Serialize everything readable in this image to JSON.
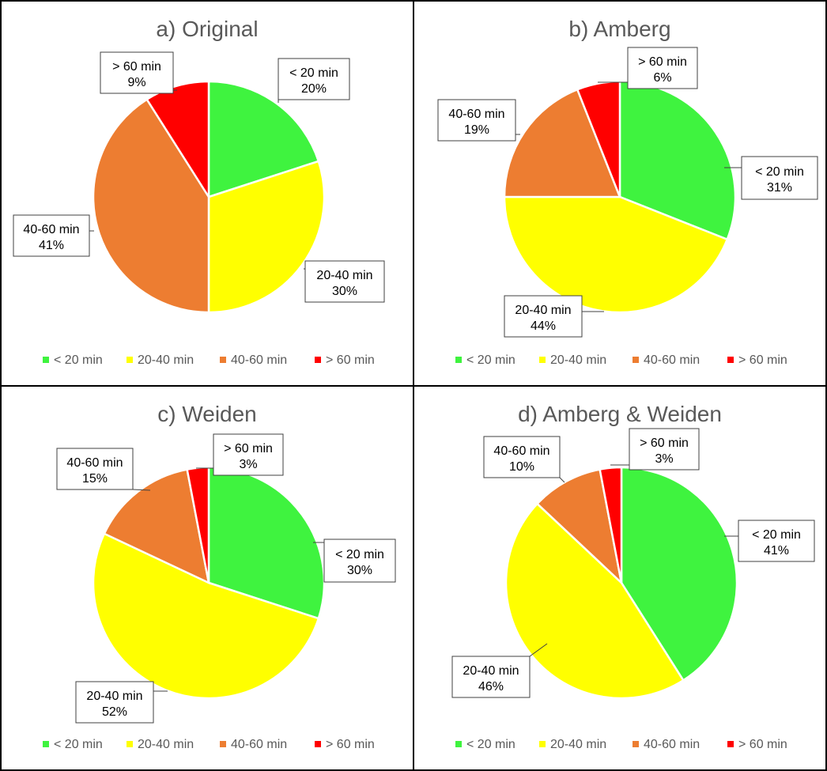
{
  "colors": {
    "lt20": "#3FF33F",
    "20to40": "#FFFF00",
    "40to60": "#ED7D31",
    "gt60": "#FF0000"
  },
  "chart_data": [
    {
      "type": "pie",
      "title": "a) Original",
      "categories": [
        "< 20 min",
        "20-40 min",
        "40-60 min",
        "> 60 min"
      ],
      "values": [
        20,
        30,
        41,
        9
      ],
      "labels": [
        "20%",
        "30%",
        "41%",
        "9%"
      ],
      "legend": [
        "< 20 min",
        "20-40 min",
        "40-60 min",
        "> 60 min"
      ]
    },
    {
      "type": "pie",
      "title": "b) Amberg",
      "categories": [
        "< 20 min",
        "20-40 min",
        "40-60 min",
        "> 60 min"
      ],
      "values": [
        31,
        44,
        19,
        6
      ],
      "labels": [
        "31%",
        "44%",
        "19%",
        "6%"
      ],
      "legend": [
        "< 20 min",
        "20-40 min",
        "40-60 min",
        "> 60 min"
      ]
    },
    {
      "type": "pie",
      "title": "c) Weiden",
      "categories": [
        "< 20 min",
        "20-40 min",
        "40-60 min",
        "> 60 min"
      ],
      "values": [
        30,
        52,
        15,
        3
      ],
      "labels": [
        "30%",
        "52%",
        "15%",
        "3%"
      ],
      "legend": [
        "< 20 min",
        "20-40 min",
        "40-60 min",
        "> 60 min"
      ]
    },
    {
      "type": "pie",
      "title": "d) Amberg & Weiden",
      "categories": [
        "< 20 min",
        "20-40 min",
        "40-60 min",
        "> 60 min"
      ],
      "values": [
        41,
        46,
        10,
        3
      ],
      "labels": [
        "41%",
        "46%",
        "10%",
        "3%"
      ],
      "legend": [
        "< 20 min",
        "20-40 min",
        "40-60 min",
        "> 60 min"
      ]
    }
  ]
}
